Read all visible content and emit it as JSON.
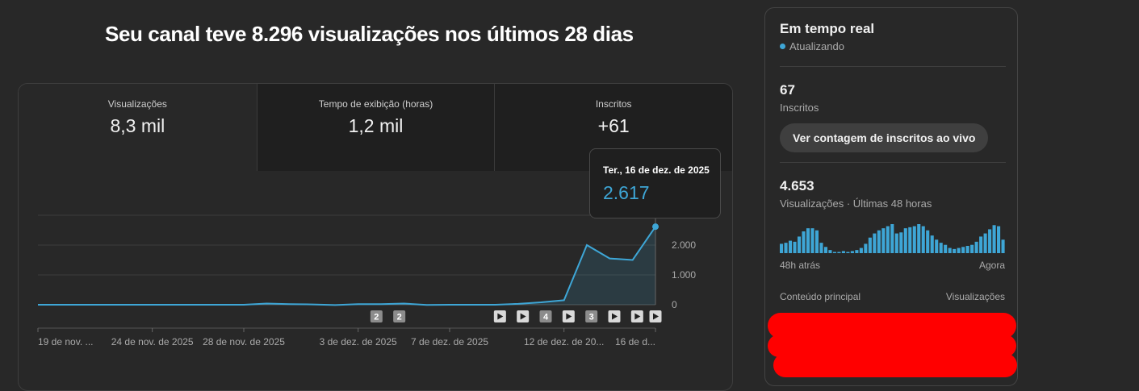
{
  "headline": "Seu canal teve 8.296 visualizações nos últimos 28 dias",
  "metrics": [
    {
      "label": "Visualizações",
      "value": "8,3 mil"
    },
    {
      "label": "Tempo de exibição (horas)",
      "value": "1,2 mil"
    },
    {
      "label": "Inscritos",
      "value": "+61"
    }
  ],
  "tooltip": {
    "date": "Ter., 16 de dez. de 2025",
    "value": "2.617"
  },
  "chart_data": {
    "type": "area",
    "y_ticks": [
      "2.000",
      "1.000",
      "0"
    ],
    "ylim": [
      0,
      3000
    ],
    "x_tick_labels": [
      "19 de nov. ...",
      "24 de nov. de 2025",
      "28 de nov. de 2025",
      "3 de dez. de 2025",
      "7 de dez. de 2025",
      "12 de dez. de 20...",
      "16 de d..."
    ],
    "x_tick_days": [
      0,
      5,
      9,
      14,
      18,
      23,
      27
    ],
    "values": [
      0,
      0,
      0,
      0,
      0,
      0,
      0,
      0,
      0,
      0,
      0,
      0,
      0,
      40,
      20,
      10,
      -10,
      20,
      20,
      40,
      -5,
      0,
      0,
      0,
      30,
      80,
      150,
      2000,
      1550,
      1500,
      2617
    ],
    "day_offset_of_last": 27,
    "event_markers": [
      {
        "kind": "count",
        "label": "2",
        "day": 14.8
      },
      {
        "kind": "count",
        "label": "2",
        "day": 15.8
      },
      {
        "kind": "play",
        "label": "",
        "day": 20.2
      },
      {
        "kind": "play",
        "label": "",
        "day": 21.2
      },
      {
        "kind": "count",
        "label": "4",
        "day": 22.2
      },
      {
        "kind": "play",
        "label": "",
        "day": 23.2
      },
      {
        "kind": "count",
        "label": "3",
        "day": 24.2
      },
      {
        "kind": "play",
        "label": "",
        "day": 25.2
      },
      {
        "kind": "play",
        "label": "",
        "day": 26.2
      },
      {
        "kind": "play",
        "label": "",
        "day": 27.0
      }
    ],
    "line_color": "#3ea6d6"
  },
  "realtime": {
    "title": "Em tempo real",
    "status": "Atualizando",
    "subscribers": "67",
    "subscribers_label": "Inscritos",
    "live_button": "Ver contagem de inscritos ao vivo",
    "views": "4.653",
    "views_label": "Visualizações · Últimas 48 horas",
    "bars": [
      9,
      10,
      12,
      11,
      16,
      21,
      24,
      24,
      22,
      10,
      6,
      3,
      1,
      1,
      2,
      1,
      2,
      3,
      5,
      9,
      15,
      19,
      22,
      24,
      26,
      28,
      19,
      20,
      24,
      25,
      26,
      28,
      26,
      22,
      17,
      13,
      10,
      8,
      5,
      4,
      5,
      6,
      7,
      8,
      11,
      16,
      19,
      23,
      27,
      26,
      13
    ],
    "axis_start": "48h atrás",
    "axis_end": "Agora",
    "table_header_left": "Conteúdo principal",
    "table_header_right": "Visualizações"
  }
}
